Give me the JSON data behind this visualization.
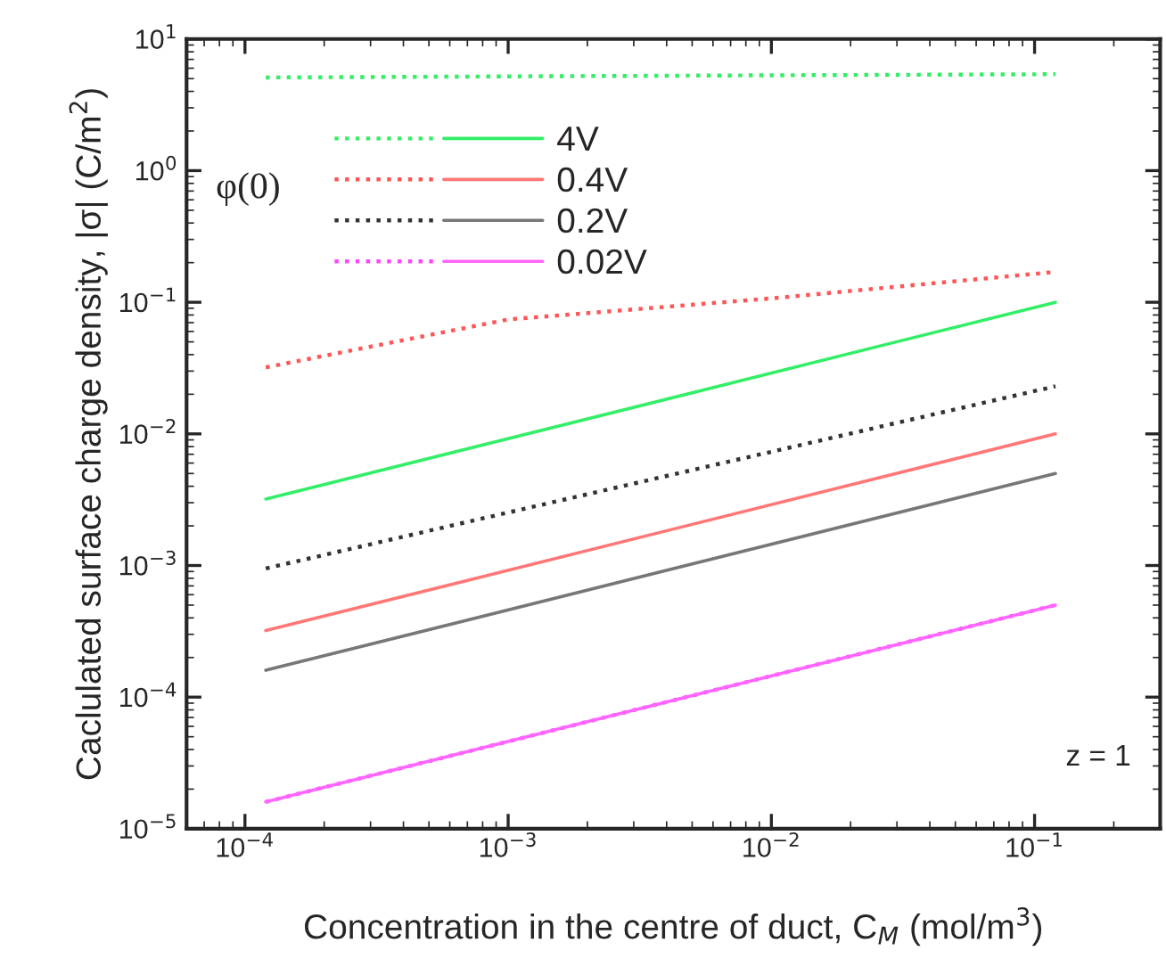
{
  "chart_data": {
    "type": "line",
    "log": "xy",
    "xlabel": "Concentration in the centre of duct, C$_{M}$ (mol/m$^{3}$)",
    "ylabel": "Caclulated surface charge density, |σ| (C/m$^{2}$)",
    "legend_title": "φ(0)",
    "legend": "top left",
    "grid": false,
    "xlim": [
      6e-05,
      0.3
    ],
    "ylim": [
      1e-05,
      10
    ],
    "xticks": [
      {
        "value": 0.0001,
        "label": "10$^{−4}$"
      },
      {
        "value": 0.001,
        "label": "10$^{−3}$"
      },
      {
        "value": 0.01,
        "label": "10$^{−2}$"
      },
      {
        "value": 0.1,
        "label": "10$^{−1}$"
      }
    ],
    "yticks": [
      {
        "value": 1e-05,
        "label": "10$^{−5}$"
      },
      {
        "value": 0.0001,
        "label": "10$^{−4}$"
      },
      {
        "value": 0.001,
        "label": "10$^{−3}$"
      },
      {
        "value": 0.01,
        "label": "10$^{−2}$"
      },
      {
        "value": 0.1,
        "label": "10$^{−1}$"
      },
      {
        "value": 1,
        "label": "10$^{0}$"
      },
      {
        "value": 10,
        "label": "10$^{1}$"
      }
    ],
    "x": [
      0.00012,
      0.001,
      0.01,
      0.12
    ],
    "series": [
      {
        "color": "#33ee66",
        "line_style": "dotted",
        "values": [
          5.1,
          5.2,
          5.3,
          5.4
        ]
      },
      {
        "name": "4V",
        "color": "#33ee66",
        "line_style": "solid",
        "values": [
          0.0032,
          null,
          null,
          0.1
        ]
      },
      {
        "color": "#ff5555",
        "line_style": "dotted",
        "values": [
          0.032,
          0.074,
          0.107,
          0.17
        ]
      },
      {
        "name": "0.4V",
        "color": "#ff7777",
        "line_style": "solid",
        "values": [
          0.00032,
          null,
          null,
          0.01
        ]
      },
      {
        "color": "#333333",
        "line_style": "dotted",
        "values": [
          0.00095,
          null,
          null,
          0.023
        ]
      },
      {
        "name": "0.2V",
        "color": "#777777",
        "line_style": "solid",
        "values": [
          0.00016,
          null,
          null,
          0.005
        ]
      },
      {
        "color": "#ff44ff",
        "line_style": "dotted",
        "values": [
          1.6e-05,
          null,
          null,
          0.0005
        ]
      },
      {
        "name": "0.02V",
        "color": "#ff66ff",
        "line_style": "solid",
        "values": [
          1.6e-05,
          null,
          null,
          0.0005
        ]
      }
    ],
    "annotations": [
      "z = 1"
    ]
  }
}
